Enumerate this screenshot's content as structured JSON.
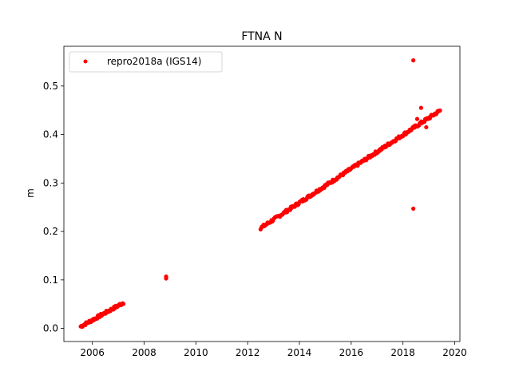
{
  "chart_data": {
    "type": "scatter",
    "title": "FTNA N",
    "xlabel": "",
    "ylabel": "m",
    "xlim": [
      2004.9,
      2020.2
    ],
    "ylim": [
      -0.027,
      0.582
    ],
    "xticks": [
      2006,
      2008,
      2010,
      2012,
      2014,
      2016,
      2018,
      2020
    ],
    "yticks": [
      0.0,
      0.1,
      0.2,
      0.3,
      0.4,
      0.5
    ],
    "xtick_labels": [
      "2006",
      "2008",
      "2010",
      "2012",
      "2014",
      "2016",
      "2018",
      "2020"
    ],
    "ytick_labels": [
      "0.0",
      "0.1",
      "0.2",
      "0.3",
      "0.4",
      "0.5"
    ],
    "legend_position": "top-left",
    "grid": false,
    "series": [
      {
        "name": "repro2018a (IGS14)",
        "color": "#ff0000",
        "marker": "circle",
        "segments": [
          {
            "x_start": 2005.55,
            "x_end": 2007.2,
            "y_start": 0.004,
            "y_end": 0.053,
            "step": 0.03
          },
          {
            "x_start": 2012.5,
            "x_end": 2019.45,
            "y_start": 0.207,
            "y_end": 0.45,
            "step": 0.03
          }
        ],
        "points": [
          {
            "x": 2008.85,
            "y": 0.107
          },
          {
            "x": 2008.85,
            "y": 0.103
          },
          {
            "x": 2018.4,
            "y": 0.553
          },
          {
            "x": 2018.4,
            "y": 0.247
          },
          {
            "x": 2018.7,
            "y": 0.455
          },
          {
            "x": 2018.9,
            "y": 0.415
          },
          {
            "x": 2018.55,
            "y": 0.432
          }
        ]
      }
    ]
  }
}
